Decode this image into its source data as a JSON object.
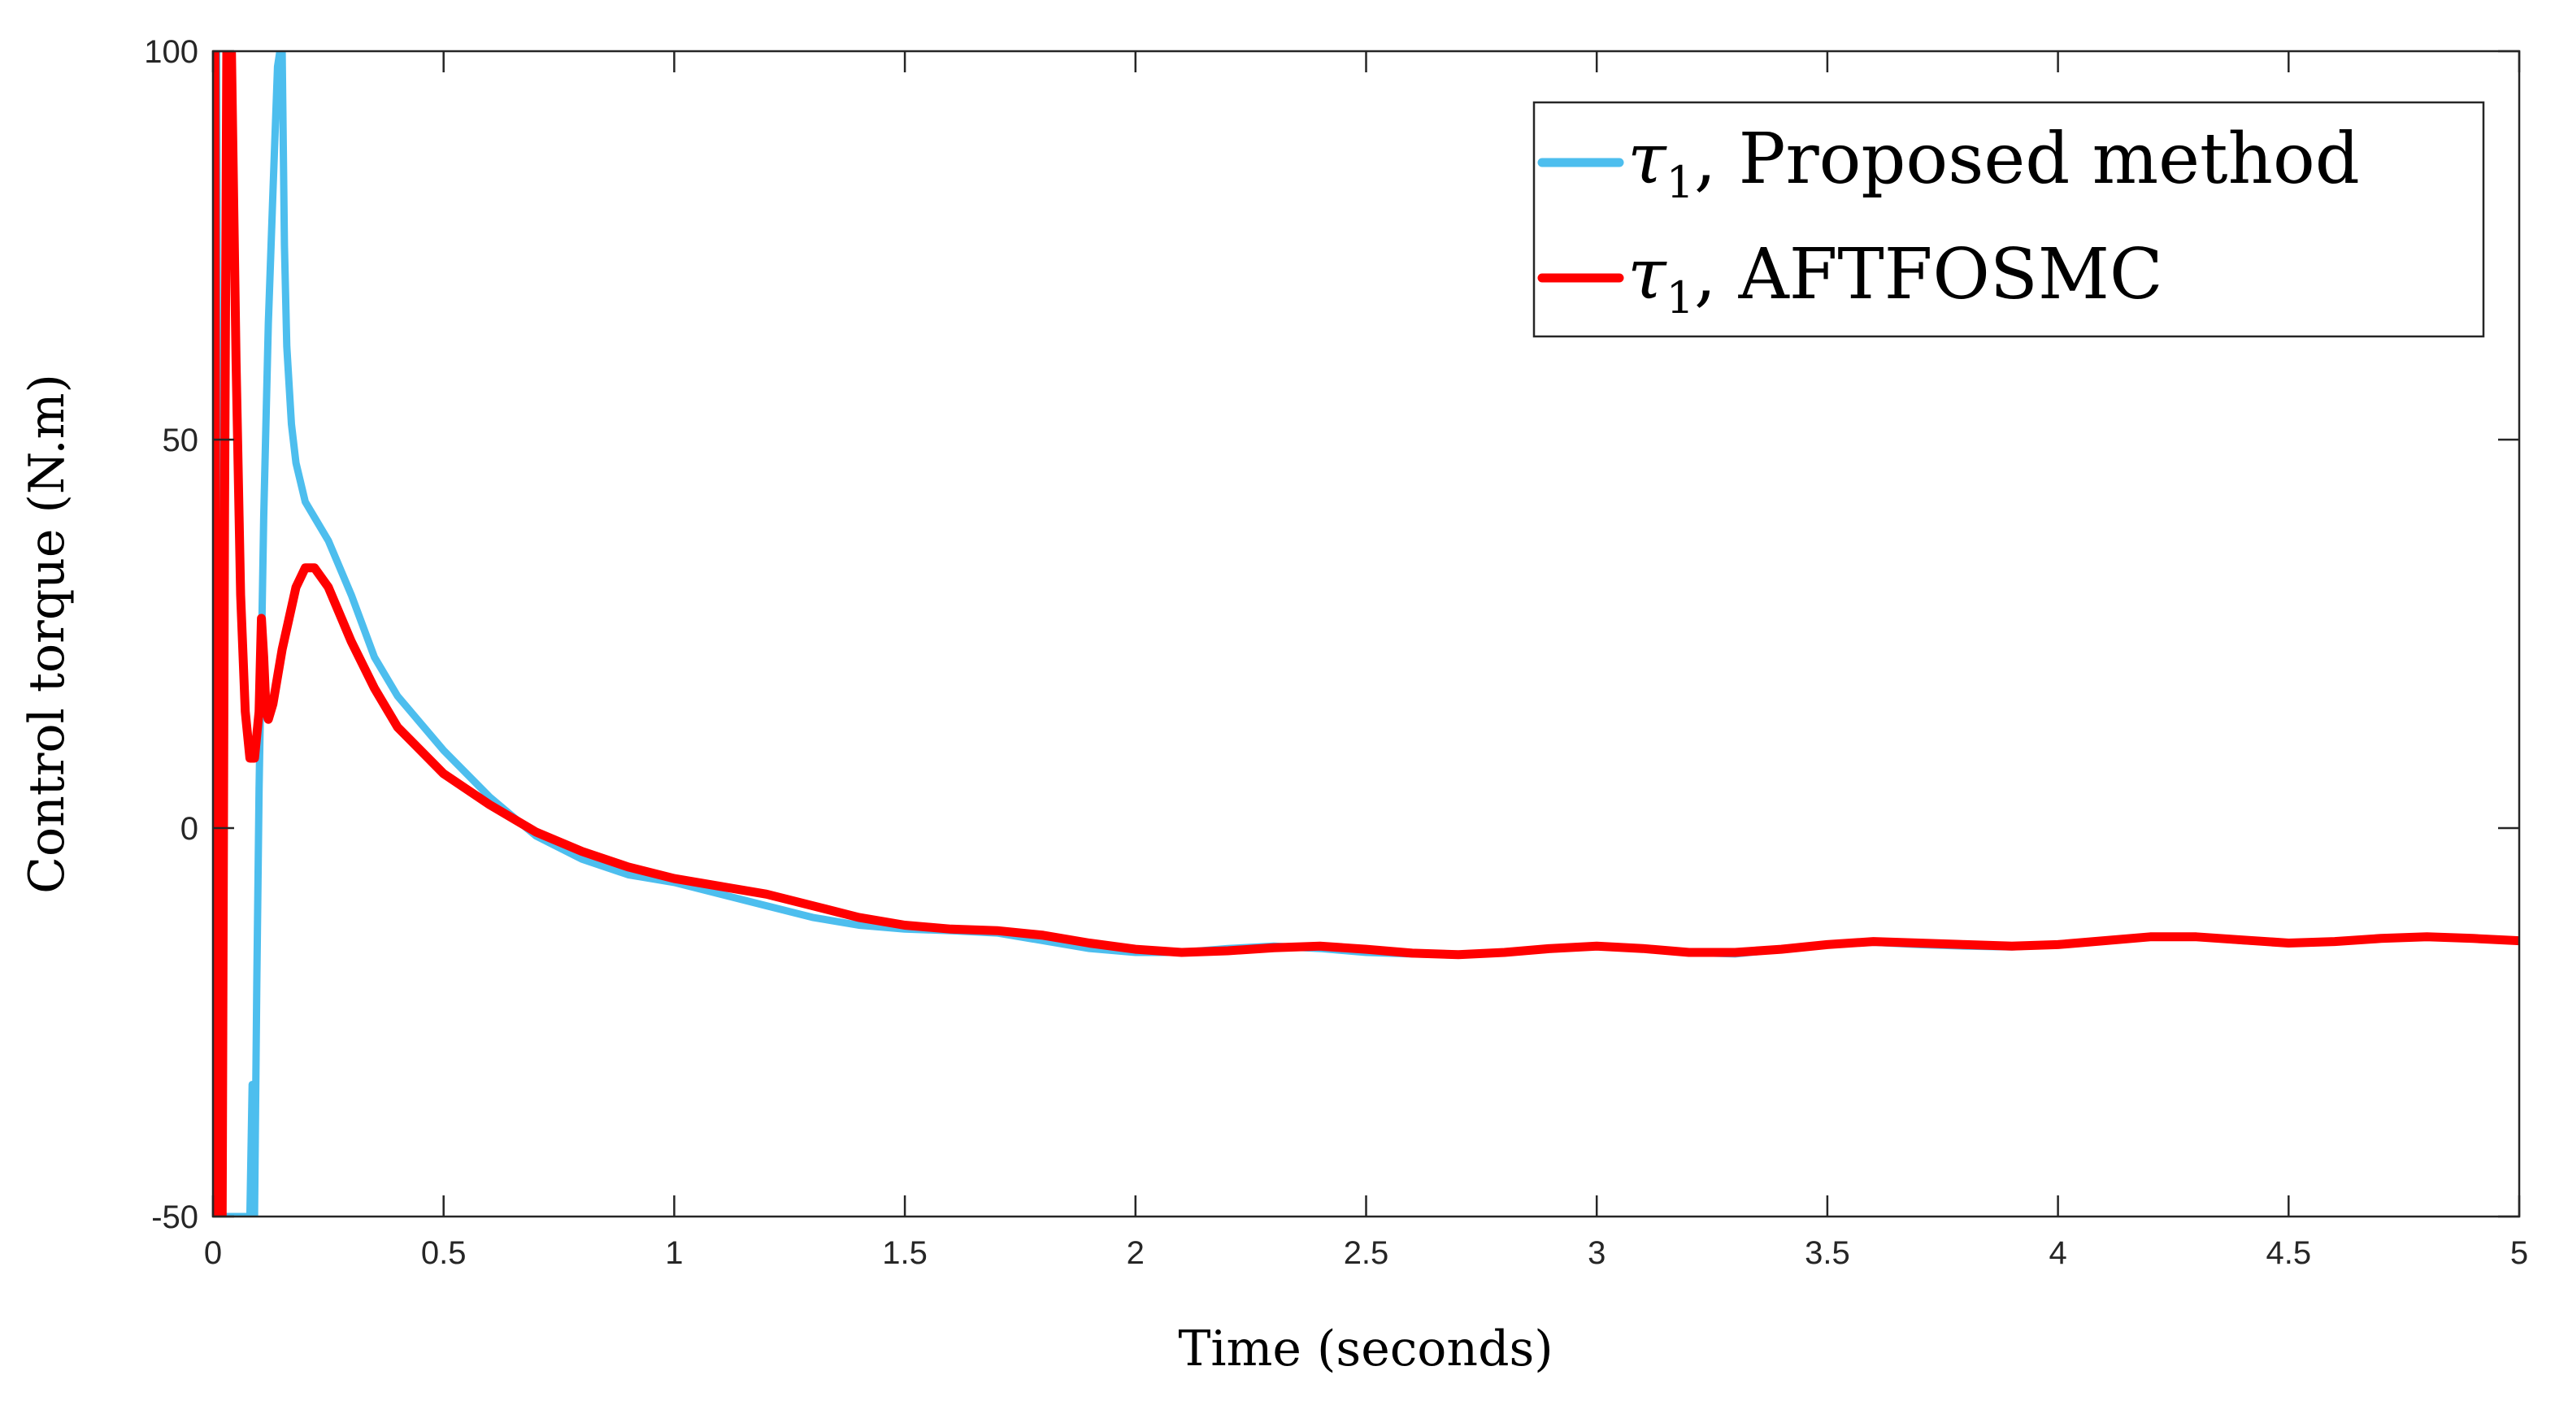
{
  "chart_data": {
    "type": "line",
    "xlabel": "Time (seconds)",
    "ylabel": "Control torque (N.m)",
    "xlim": [
      0,
      5
    ],
    "ylim": [
      -50,
      100
    ],
    "xticks": [
      0,
      0.5,
      1,
      1.5,
      2,
      2.5,
      3,
      3.5,
      4,
      4.5,
      5
    ],
    "xtick_labels": [
      "0",
      "0.5",
      "1",
      "1.5",
      "2",
      "2.5",
      "3",
      "3.5",
      "4",
      "4.5",
      "5"
    ],
    "yticks": [
      -50,
      0,
      50,
      100
    ],
    "ytick_labels": [
      "-50",
      "0",
      "50",
      "100"
    ],
    "grid": false,
    "legend_position": "top-right",
    "series": [
      {
        "name": "τ1, Proposed method",
        "legend_symbol": "τ",
        "legend_subscript": "1",
        "legend_suffix": ", Proposed method",
        "color": "#4DBEEE",
        "x": [
          0,
          0.003,
          0.008,
          0.012,
          0.02,
          0.05,
          0.08,
          0.085,
          0.09,
          0.095,
          0.1,
          0.11,
          0.12,
          0.13,
          0.14,
          0.145,
          0.15,
          0.155,
          0.16,
          0.17,
          0.18,
          0.2,
          0.25,
          0.3,
          0.35,
          0.4,
          0.5,
          0.6,
          0.7,
          0.8,
          0.9,
          1,
          1.1,
          1.2,
          1.3,
          1.4,
          1.5,
          1.6,
          1.7,
          1.8,
          1.9,
          2,
          2.1,
          2.2,
          2.3,
          2.4,
          2.5,
          2.6,
          2.7,
          2.8,
          2.9,
          3,
          3.1,
          3.2,
          3.3,
          3.4,
          3.5,
          3.6,
          3.7,
          3.8,
          3.9,
          4,
          4.1,
          4.2,
          4.3,
          4.4,
          4.5,
          4.6,
          4.7,
          4.8,
          4.9,
          5
        ],
        "y": [
          100,
          100,
          100,
          5,
          -50,
          -50,
          -50,
          -33,
          -50,
          -20,
          5,
          40,
          65,
          82,
          98,
          100,
          100,
          75,
          62,
          52,
          47,
          42,
          37,
          30,
          22,
          17,
          10,
          4,
          -1,
          -4,
          -6,
          -7,
          -8.5,
          -10,
          -11.5,
          -12.5,
          -13,
          -13.2,
          -13.5,
          -14.5,
          -15.5,
          -16,
          -16,
          -15.5,
          -15.2,
          -15.5,
          -16,
          -16.2,
          -16.3,
          -16,
          -15.6,
          -15.2,
          -15.5,
          -16,
          -16.2,
          -15.6,
          -15,
          -14.7,
          -15,
          -15.2,
          -15.3,
          -15,
          -14.5,
          -14,
          -14,
          -14.5,
          -14.8,
          -14.6,
          -14.2,
          -14,
          -14.2,
          -14.5
        ]
      },
      {
        "name": "τ1, AFTFOSMC",
        "legend_symbol": "τ",
        "legend_subscript": "1",
        "legend_suffix": ", AFTFOSMC",
        "color": "#FF0000",
        "x": [
          0,
          0.004,
          0.008,
          0.012,
          0.015,
          0.02,
          0.025,
          0.03,
          0.04,
          0.05,
          0.06,
          0.07,
          0.08,
          0.09,
          0.1,
          0.105,
          0.11,
          0.115,
          0.12,
          0.13,
          0.15,
          0.18,
          0.2,
          0.22,
          0.25,
          0.3,
          0.35,
          0.4,
          0.5,
          0.6,
          0.7,
          0.8,
          0.9,
          1,
          1.1,
          1.2,
          1.3,
          1.4,
          1.5,
          1.6,
          1.7,
          1.8,
          1.9,
          2,
          2.1,
          2.2,
          2.3,
          2.4,
          2.5,
          2.6,
          2.7,
          2.8,
          2.9,
          3,
          3.1,
          3.2,
          3.3,
          3.4,
          3.5,
          3.6,
          3.7,
          3.8,
          3.9,
          4,
          4.1,
          4.2,
          4.3,
          4.4,
          4.5,
          4.6,
          4.7,
          4.8,
          4.9,
          5
        ],
        "y": [
          100,
          100,
          -50,
          -50,
          -50,
          -50,
          40,
          100,
          100,
          60,
          30,
          15,
          9,
          9,
          15,
          27,
          22,
          15,
          14,
          16,
          23,
          31,
          33.5,
          33.5,
          31,
          24,
          18,
          13,
          7,
          3,
          -0.5,
          -3,
          -5,
          -6.5,
          -7.5,
          -8.5,
          -10,
          -11.5,
          -12.5,
          -13,
          -13.2,
          -13.8,
          -14.8,
          -15.6,
          -16,
          -15.8,
          -15.4,
          -15.2,
          -15.6,
          -16.1,
          -16.3,
          -16,
          -15.5,
          -15.2,
          -15.5,
          -16,
          -16,
          -15.6,
          -15,
          -14.6,
          -14.8,
          -15,
          -15.2,
          -15,
          -14.5,
          -14,
          -14,
          -14.4,
          -14.8,
          -14.6,
          -14.2,
          -14,
          -14.2,
          -14.5
        ]
      }
    ]
  }
}
